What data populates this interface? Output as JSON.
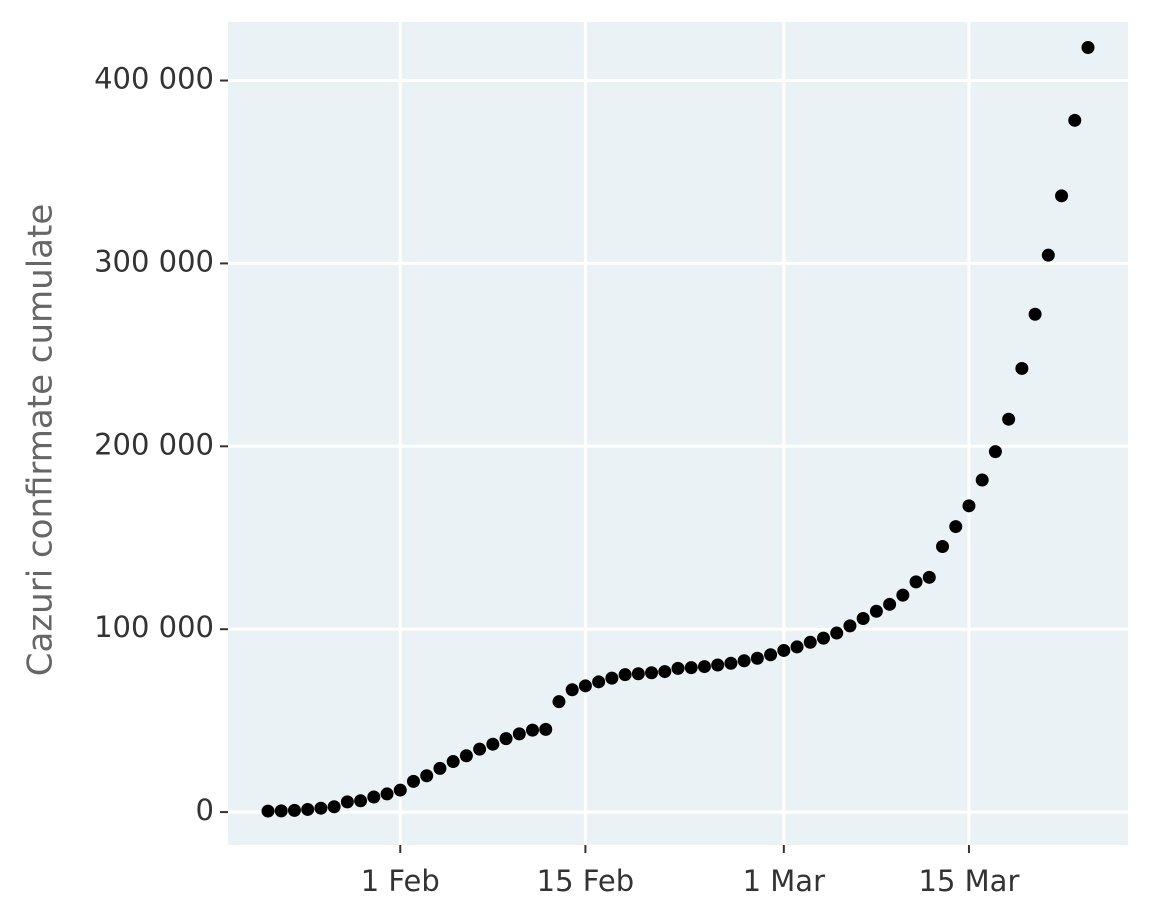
{
  "chart_data": {
    "type": "scatter",
    "y_label": "Cazuri confirmate cumulate",
    "categories": [
      null,
      null,
      null,
      null,
      null,
      null,
      null,
      null,
      null,
      null,
      "1 Feb",
      null,
      null,
      null,
      null,
      null,
      null,
      null,
      null,
      null,
      null,
      null,
      null,
      null,
      "15 Feb",
      null,
      null,
      null,
      null,
      null,
      null,
      null,
      null,
      null,
      null,
      null,
      null,
      null,
      null,
      "1 Mar",
      null,
      null,
      null,
      null,
      null,
      null,
      null,
      null,
      null,
      null,
      null,
      null,
      null,
      "15 Mar",
      null,
      null,
      null,
      null,
      null,
      null,
      null,
      null,
      null
    ],
    "values": [
      555,
      654,
      941,
      1434,
      2118,
      2927,
      5578,
      6166,
      8234,
      9927,
      12038,
      16787,
      19881,
      23892,
      27635,
      30817,
      34391,
      37120,
      40150,
      42762,
      44802,
      45221,
      60368,
      66885,
      69030,
      71224,
      73258,
      75136,
      75639,
      76197,
      76819,
      78572,
      78958,
      79561,
      80406,
      81388,
      82746,
      84112,
      86011,
      88369,
      90306,
      92840,
      95120,
      97886,
      101801,
      105847,
      109821,
      113590,
      118620,
      125875,
      128352,
      145205,
      156101,
      167454,
      181574,
      197102,
      214821,
      242570,
      272208,
      304507,
      336953,
      378235,
      418045
    ],
    "color": "#000000",
    "ylim": [
      -18000,
      432000
    ],
    "yticks": [
      0,
      {
        "value": 100000,
        "label": "100 000"
      },
      {
        "value": 200000,
        "label": "200 000"
      },
      {
        "value": 300000,
        "label": "300 000"
      },
      {
        "value": 400000,
        "label": "400 000"
      }
    ],
    "grid": true
  }
}
